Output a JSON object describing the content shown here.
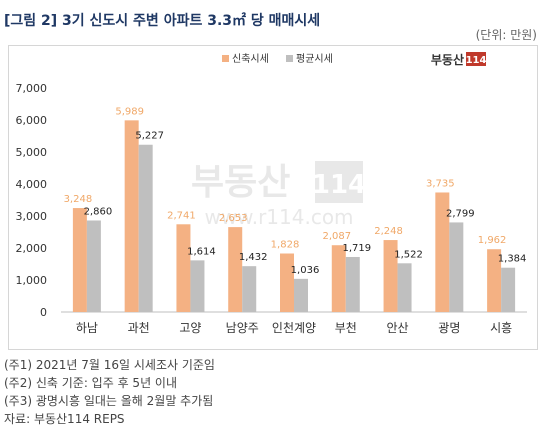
{
  "header": {
    "title": "[그림 2] 3기 신도시 주변 아파트 3.3㎡ 당 매매시세",
    "unit": "(단위: 만원)"
  },
  "logo": {
    "text": "부동산",
    "badge": "114",
    "color": "#c0392b"
  },
  "watermark": {
    "brand": "부동산",
    "badge": "114",
    "url": "www.r114.com"
  },
  "notes": [
    "(주1) 2021년 7월 16일 시세조사 기준임",
    "(주2) 신축 기준: 입주 후 5년 이내",
    "(주3) 광명시흥 일대는 올해 2월말 추가됨",
    "자료: 부동산114 REPS"
  ],
  "chart_data": {
    "type": "bar",
    "categories": [
      "하남",
      "과천",
      "고양",
      "남양주",
      "인천계양",
      "부천",
      "안산",
      "광명",
      "시흥"
    ],
    "series": [
      {
        "name": "신축시세",
        "color": "#f4b183",
        "label_color": "#f0a868",
        "values": [
          3248,
          5989,
          2741,
          2653,
          1828,
          2087,
          2248,
          3735,
          1962
        ]
      },
      {
        "name": "평균시세",
        "color": "#bfbfbf",
        "label_color": "#222222",
        "values": [
          2860,
          5227,
          1614,
          1432,
          1036,
          1719,
          1522,
          2799,
          1384
        ]
      }
    ],
    "ylim": [
      0,
      7000
    ],
    "yticks": [
      "0",
      "1,000",
      "2,000",
      "3,000",
      "4,000",
      "5,000",
      "6,000",
      "7,000"
    ],
    "grid": false,
    "legend_position": "top-right"
  }
}
